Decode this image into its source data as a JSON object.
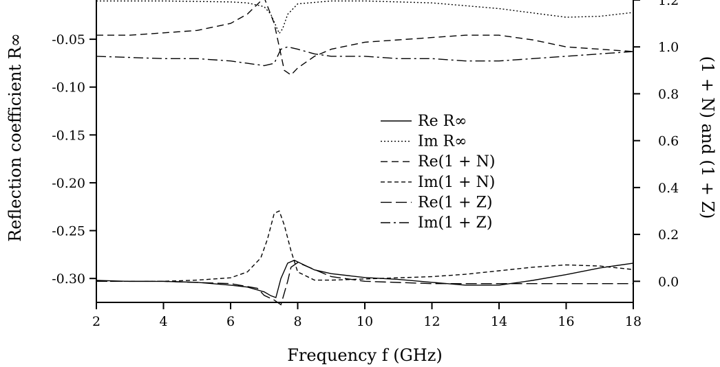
{
  "chart_data": {
    "type": "line",
    "xlabel": "Frequency f (GHz)",
    "ylabel_left": "Reflection coefficient R∞",
    "ylabel_right": "(1 + N) and (1 + Z)",
    "xlim": [
      2,
      18
    ],
    "ylim_left": [
      -0.325,
      -0.009
    ],
    "ylim_right": [
      -0.09,
      1.2
    ],
    "grid": false,
    "legend_placement": "center-right",
    "x_ticks": [
      "2",
      "4",
      "6",
      "8",
      "10",
      "12",
      "14",
      "16",
      "18"
    ],
    "y_ticks_left": [
      "-0.05",
      "-0.10",
      "-0.15",
      "-0.20",
      "-0.25",
      "-0.30"
    ],
    "y_ticks_right": [
      "1.2",
      "1.0",
      "0.8",
      "0.6",
      "0.4",
      "0.2",
      "0.0"
    ],
    "series": [
      {
        "name": "Re R∞",
        "axis": "left",
        "style": "solid",
        "x": [
          2,
          3,
          4,
          5,
          6,
          6.5,
          7,
          7.2,
          7.35,
          7.5,
          7.7,
          7.9,
          8.5,
          9,
          10,
          11,
          12,
          13,
          14,
          15,
          16,
          17,
          18
        ],
        "y": [
          -0.302,
          -0.303,
          -0.303,
          -0.304,
          -0.307,
          -0.309,
          -0.314,
          -0.318,
          -0.32,
          -0.3,
          -0.284,
          -0.281,
          -0.291,
          -0.295,
          -0.299,
          -0.301,
          -0.304,
          -0.307,
          -0.307,
          -0.302,
          -0.296,
          -0.289,
          -0.284
        ]
      },
      {
        "name": "Im R∞",
        "axis": "left",
        "style": "dotted",
        "x": [
          2,
          4,
          6,
          6.5,
          7,
          7.2,
          7.35,
          7.45,
          7.55,
          7.7,
          8,
          9,
          10,
          12,
          14,
          16,
          17,
          18
        ],
        "y": [
          -0.01,
          -0.01,
          -0.011,
          -0.012,
          -0.016,
          -0.024,
          -0.036,
          -0.044,
          -0.039,
          -0.024,
          -0.013,
          -0.01,
          -0.01,
          -0.012,
          -0.018,
          -0.027,
          -0.026,
          -0.022
        ]
      },
      {
        "name": "Re(1 + N)",
        "axis": "right",
        "style": "dashed",
        "x": [
          2,
          3,
          4,
          5,
          6,
          6.5,
          7,
          7.3,
          7.6,
          7.8,
          8,
          8.5,
          9,
          10,
          11,
          12,
          13,
          14,
          15,
          16,
          17,
          18
        ],
        "y": [
          1.05,
          1.05,
          1.06,
          1.07,
          1.1,
          1.14,
          1.21,
          1.1,
          0.9,
          0.88,
          0.91,
          0.96,
          0.99,
          1.02,
          1.03,
          1.04,
          1.05,
          1.05,
          1.03,
          1.0,
          0.99,
          0.98
        ]
      },
      {
        "name": "Im(1 + N)",
        "axis": "right",
        "style": "short-dash",
        "x": [
          2,
          3,
          4,
          5,
          6,
          6.5,
          6.9,
          7.1,
          7.3,
          7.45,
          7.6,
          7.8,
          8,
          8.5,
          9,
          10,
          11,
          12,
          13,
          14,
          15,
          16,
          17,
          18
        ],
        "y": [
          0.0,
          0.0,
          0.0,
          0.005,
          0.015,
          0.04,
          0.1,
          0.18,
          0.29,
          0.3,
          0.24,
          0.13,
          0.04,
          0.005,
          0.005,
          0.01,
          0.015,
          0.02,
          0.03,
          0.045,
          0.06,
          0.07,
          0.065,
          0.05
        ]
      },
      {
        "name": "Re(1 + Z)",
        "axis": "right",
        "style": "long-dash",
        "x": [
          2,
          4,
          6,
          6.8,
          7,
          7.3,
          7.5,
          7.6,
          7.7,
          7.8,
          8,
          9,
          10,
          12,
          14,
          16,
          18
        ],
        "y": [
          0.0,
          0.0,
          -0.01,
          -0.03,
          -0.06,
          -0.08,
          -0.1,
          -0.05,
          0.0,
          0.06,
          0.08,
          0.02,
          0.0,
          -0.01,
          -0.01,
          -0.01,
          -0.01
        ]
      },
      {
        "name": "Im(1 + Z)",
        "axis": "right",
        "style": "dash-dot",
        "x": [
          2,
          3,
          4,
          5,
          6,
          6.5,
          7,
          7.3,
          7.5,
          7.7,
          8,
          8.5,
          9,
          10,
          11,
          12,
          13,
          14,
          15,
          16,
          17,
          18
        ],
        "y": [
          0.96,
          0.955,
          0.95,
          0.95,
          0.94,
          0.93,
          0.92,
          0.93,
          0.99,
          1.0,
          0.99,
          0.97,
          0.96,
          0.96,
          0.95,
          0.95,
          0.94,
          0.94,
          0.95,
          0.96,
          0.97,
          0.98
        ]
      }
    ]
  }
}
